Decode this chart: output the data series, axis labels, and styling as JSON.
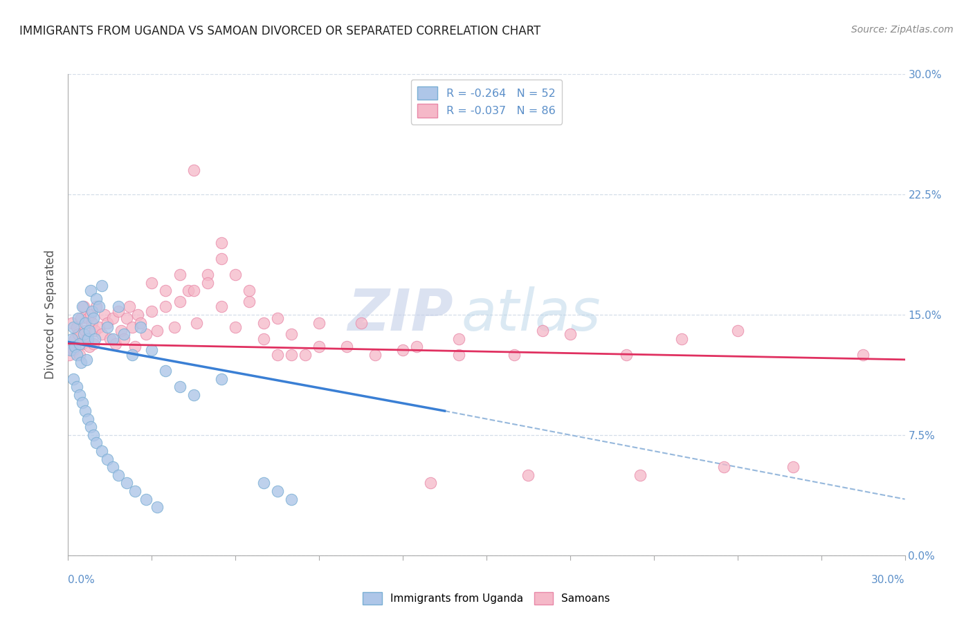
{
  "title": "IMMIGRANTS FROM UGANDA VS SAMOAN DIVORCED OR SEPARATED CORRELATION CHART",
  "source": "Source: ZipAtlas.com",
  "ylabel": "Divorced or Separated",
  "ytick_vals": [
    0.0,
    7.5,
    15.0,
    22.5,
    30.0
  ],
  "xrange": [
    0.0,
    30.0
  ],
  "yrange": [
    0.0,
    30.0
  ],
  "legend_blue_R": "R = -0.264",
  "legend_blue_N": "N = 52",
  "legend_pink_R": "R = -0.037",
  "legend_pink_N": "N = 86",
  "blue_color": "#aec6e8",
  "pink_color": "#f5b8c8",
  "blue_edge": "#7aafd4",
  "pink_edge": "#e888a8",
  "blue_line_color": "#3a7fd4",
  "pink_line_color": "#e03060",
  "dashed_line_color": "#96b8dc",
  "watermark_zip_color": "#c4cfe8",
  "watermark_atlas_color": "#b8d4e8",
  "background_color": "#ffffff",
  "grid_color": "#d4dde8",
  "tick_label_color": "#5b8fc9",
  "blue_line_x0": 0.0,
  "blue_line_y0": 13.3,
  "blue_line_x1": 13.5,
  "blue_line_y1": 9.0,
  "blue_dash_x0": 13.5,
  "blue_dash_y0": 9.0,
  "blue_dash_x1": 30.0,
  "blue_dash_y1": 3.5,
  "pink_line_x0": 0.0,
  "pink_line_y0": 13.2,
  "pink_line_x1": 30.0,
  "pink_line_y1": 12.2,
  "blue_scatter_x": [
    0.1,
    0.15,
    0.2,
    0.25,
    0.3,
    0.35,
    0.4,
    0.45,
    0.5,
    0.55,
    0.6,
    0.65,
    0.7,
    0.75,
    0.8,
    0.85,
    0.9,
    0.95,
    1.0,
    1.1,
    1.2,
    1.4,
    1.6,
    1.8,
    2.0,
    2.3,
    2.6,
    3.0,
    3.5,
    4.0,
    4.5,
    5.5,
    7.0,
    7.5,
    8.0,
    0.2,
    0.3,
    0.4,
    0.5,
    0.6,
    0.7,
    0.8,
    0.9,
    1.0,
    1.2,
    1.4,
    1.6,
    1.8,
    2.1,
    2.4,
    2.8,
    3.2
  ],
  "blue_scatter_y": [
    12.8,
    13.5,
    14.2,
    13.0,
    12.5,
    14.8,
    13.2,
    12.0,
    15.5,
    13.8,
    14.5,
    12.2,
    13.5,
    14.0,
    16.5,
    15.2,
    14.8,
    13.5,
    16.0,
    15.5,
    16.8,
    14.2,
    13.5,
    15.5,
    13.8,
    12.5,
    14.2,
    12.8,
    11.5,
    10.5,
    10.0,
    11.0,
    4.5,
    4.0,
    3.5,
    11.0,
    10.5,
    10.0,
    9.5,
    9.0,
    8.5,
    8.0,
    7.5,
    7.0,
    6.5,
    6.0,
    5.5,
    5.0,
    4.5,
    4.0,
    3.5,
    3.0
  ],
  "pink_scatter_x": [
    0.05,
    0.1,
    0.15,
    0.2,
    0.25,
    0.3,
    0.35,
    0.4,
    0.45,
    0.5,
    0.55,
    0.6,
    0.65,
    0.7,
    0.75,
    0.8,
    0.85,
    0.9,
    0.95,
    1.0,
    1.1,
    1.2,
    1.3,
    1.4,
    1.5,
    1.6,
    1.7,
    1.8,
    1.9,
    2.0,
    2.1,
    2.2,
    2.3,
    2.4,
    2.5,
    2.6,
    2.8,
    3.0,
    3.2,
    3.5,
    3.8,
    4.0,
    4.3,
    4.6,
    5.0,
    5.5,
    6.0,
    6.5,
    7.0,
    7.5,
    8.0,
    9.0,
    10.5,
    12.0,
    14.0,
    16.0,
    18.0,
    20.0,
    22.0,
    24.0,
    5.5,
    3.0,
    3.5,
    4.0,
    4.5,
    5.0,
    5.5,
    6.0,
    6.5,
    7.0,
    7.5,
    8.0,
    8.5,
    9.0,
    10.0,
    11.0,
    12.5,
    14.0,
    16.5,
    20.5,
    23.5,
    17.0,
    28.5,
    26.0,
    13.0,
    4.5
  ],
  "pink_scatter_y": [
    12.5,
    13.0,
    14.5,
    12.8,
    13.5,
    14.2,
    13.8,
    12.5,
    14.8,
    13.2,
    15.5,
    14.0,
    13.5,
    14.8,
    13.0,
    15.0,
    14.5,
    13.2,
    14.0,
    15.5,
    14.2,
    13.8,
    15.0,
    14.5,
    13.5,
    14.8,
    13.2,
    15.2,
    14.0,
    13.5,
    14.8,
    15.5,
    14.2,
    13.0,
    15.0,
    14.5,
    13.8,
    15.2,
    14.0,
    15.5,
    14.2,
    15.8,
    16.5,
    14.5,
    17.5,
    15.5,
    14.2,
    15.8,
    14.5,
    14.8,
    12.5,
    13.0,
    14.5,
    12.8,
    13.5,
    12.5,
    13.8,
    12.5,
    13.5,
    14.0,
    18.5,
    17.0,
    16.5,
    17.5,
    16.5,
    17.0,
    19.5,
    17.5,
    16.5,
    13.5,
    12.5,
    13.8,
    12.5,
    14.5,
    13.0,
    12.5,
    13.0,
    12.5,
    5.0,
    5.0,
    5.5,
    14.0,
    12.5,
    5.5,
    4.5,
    24.0
  ]
}
